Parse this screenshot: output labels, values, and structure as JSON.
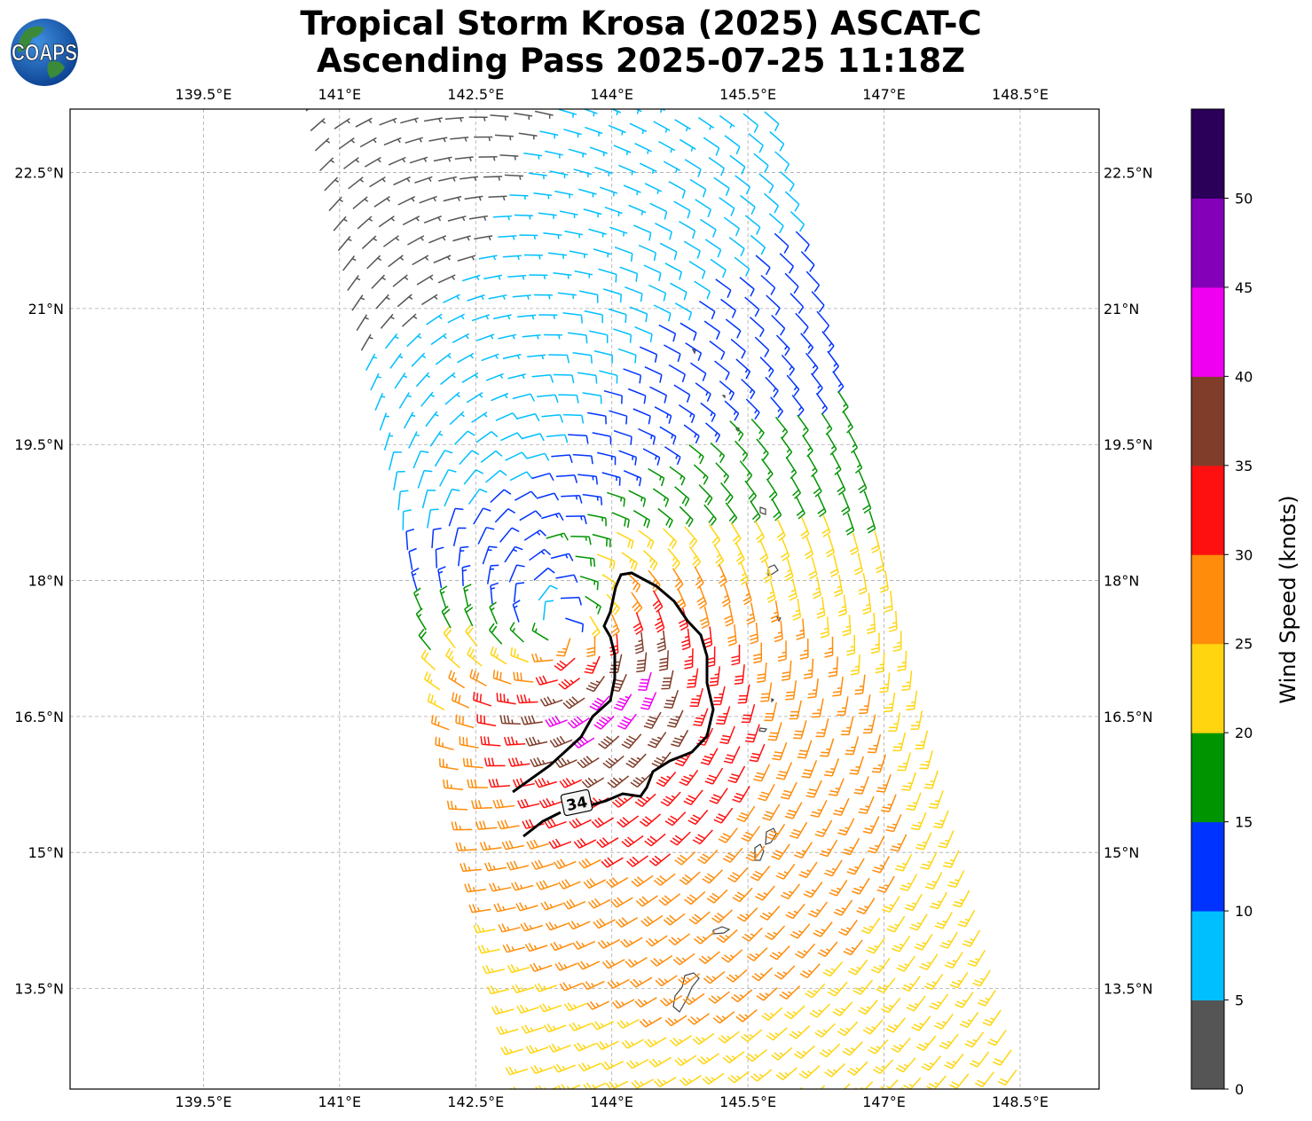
{
  "logo": {
    "text": "COAPS"
  },
  "title": {
    "line1": "Tropical Storm Krosa (2025) ASCAT-C",
    "line2": "Ascending Pass 2025-07-25 11:18Z"
  },
  "chart_data": {
    "type": "wind-barb-map",
    "title": "Tropical Storm Krosa (2025) ASCAT-C Ascending Pass 2025-07-25 11:18Z",
    "lon_range": [
      138.03,
      149.37
    ],
    "lat_range": [
      12.39,
      23.2
    ],
    "lon_ticks": [
      "139.5°E",
      "141°E",
      "142.5°E",
      "144°E",
      "145.5°E",
      "147°E",
      "148.5°E"
    ],
    "lon_tick_values": [
      139.5,
      141,
      142.5,
      144,
      145.5,
      147,
      148.5
    ],
    "lat_ticks": [
      "22.5°N",
      "21°N",
      "19.5°N",
      "18°N",
      "16.5°N",
      "15°N",
      "13.5°N"
    ],
    "lat_tick_values": [
      22.5,
      21,
      19.5,
      18,
      16.5,
      15,
      13.5
    ],
    "grid": true,
    "contour_label": "34",
    "colorbar": {
      "label": "Wind Speed (knots)",
      "ticks": [
        "0",
        "5",
        "10",
        "15",
        "20",
        "25",
        "30",
        "35",
        "40",
        "45",
        "50"
      ],
      "levels": [
        0,
        5,
        10,
        15,
        20,
        25,
        30,
        35,
        40,
        45,
        50,
        55
      ],
      "colors": [
        "#555555",
        "#00bfff",
        "#0033ff",
        "#009400",
        "#ffd510",
        "#ff8c0a",
        "#ff1010",
        "#7f3d2a",
        "#f000f0",
        "#8400b8",
        "#2a0058"
      ]
    }
  }
}
